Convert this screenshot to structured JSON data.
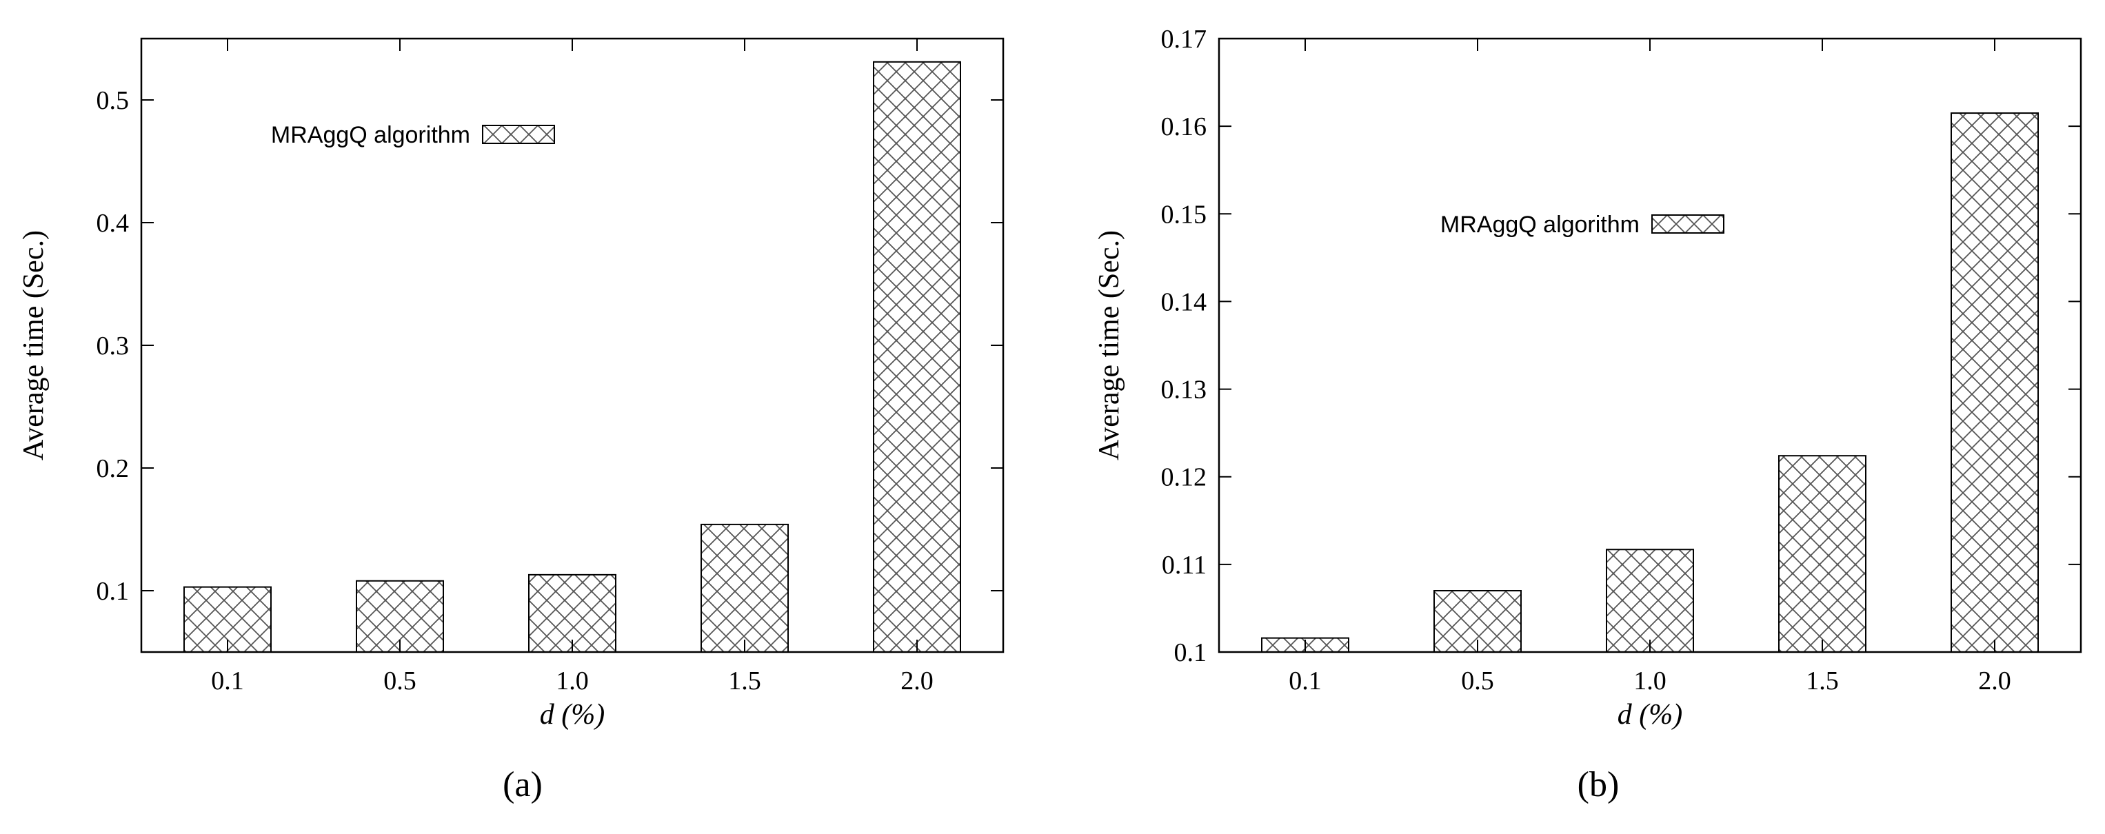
{
  "chart_data": [
    {
      "type": "bar",
      "panel_label": "(a)",
      "categories": [
        "0.1",
        "0.5",
        "1.0",
        "1.5",
        "2.0"
      ],
      "series": [
        {
          "name": "MRAggQ algorithm",
          "values": [
            0.103,
            0.108,
            0.113,
            0.154,
            0.531
          ]
        }
      ],
      "xlabel": "d (%)",
      "ylabel": "Average time (Sec.)",
      "ylim": [
        0.05,
        0.55
      ],
      "yticks": [
        0.1,
        0.2,
        0.3,
        0.4,
        0.5
      ],
      "ytick_labels": [
        "0.1",
        "0.2",
        "0.3",
        "0.4",
        "0.5"
      ],
      "grid": false,
      "legend_position": "top-left",
      "bar_fill": "crosshatch",
      "colors": {
        "stroke": "#000000",
        "hatch": "#555555",
        "background": "#ffffff"
      }
    },
    {
      "type": "bar",
      "panel_label": "(b)",
      "categories": [
        "0.1",
        "0.5",
        "1.0",
        "1.5",
        "2.0"
      ],
      "series": [
        {
          "name": "MRAggQ algorithm",
          "values": [
            0.1016,
            0.107,
            0.1117,
            0.1224,
            0.1615
          ]
        }
      ],
      "xlabel": "d (%)",
      "ylabel": "Average time (Sec.)",
      "ylim": [
        0.1,
        0.17
      ],
      "yticks": [
        0.1,
        0.11,
        0.12,
        0.13,
        0.14,
        0.15,
        0.16,
        0.17
      ],
      "ytick_labels": [
        "0.1",
        "0.11",
        "0.12",
        "0.13",
        "0.14",
        "0.15",
        "0.16",
        "0.17"
      ],
      "grid": false,
      "legend_position": "top-center",
      "bar_fill": "crosshatch",
      "colors": {
        "stroke": "#000000",
        "hatch": "#555555",
        "background": "#ffffff"
      }
    }
  ]
}
